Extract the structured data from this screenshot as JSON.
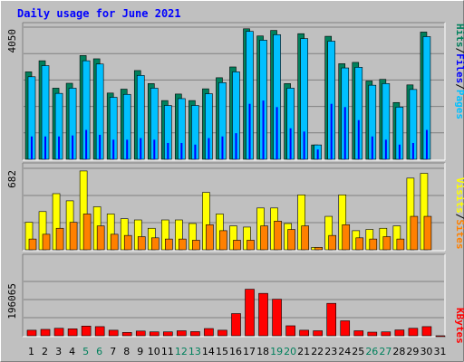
{
  "chart_data": {
    "title": "Daily usage for June 2021",
    "type": "bar",
    "categories": [
      "1",
      "2",
      "3",
      "4",
      "5",
      "6",
      "7",
      "8",
      "9",
      "10",
      "11",
      "12",
      "13",
      "14",
      "15",
      "16",
      "17",
      "18",
      "19",
      "20",
      "21",
      "22",
      "23",
      "24",
      "25",
      "26",
      "27",
      "28",
      "29",
      "30",
      "31"
    ],
    "weekend_days": [
      5,
      6,
      12,
      13,
      19,
      20,
      26,
      27
    ],
    "panels": [
      {
        "name": "hits-files-pages",
        "max_label": "4050",
        "ylim": [
          0,
          4050
        ],
        "right_label": [
          "Pages",
          "/",
          "Files",
          "/",
          "Hits"
        ],
        "series": [
          {
            "name": "Hits",
            "color": "#00805c",
            "values": [
              2680,
              3020,
              2180,
              2330,
              3180,
              3080,
              2030,
              2150,
              2720,
              2320,
              1800,
              2000,
              1800,
              2160,
              2500,
              2830,
              4000,
              3780,
              3950,
              2320,
              3850,
              440,
              3770,
              2930,
              2970,
              2400,
              2450,
              1740,
              2280,
              3900
            ]
          },
          {
            "name": "Files",
            "color": "#00c0ff",
            "values": [
              2530,
              2870,
              2020,
              2180,
              3020,
              2920,
              1900,
              1990,
              2570,
              2180,
              1650,
              1860,
              1650,
              2010,
              2350,
              2680,
              3920,
              3650,
              3820,
              2180,
              3700,
              440,
              3620,
              2800,
              2820,
              2270,
              2320,
              1600,
              2140,
              3760
            ]
          },
          {
            "name": "Pages",
            "color": "#0000ff",
            "values": [
              700,
              700,
              700,
              730,
              900,
              750,
              600,
              600,
              650,
              600,
              500,
              500,
              450,
              650,
              700,
              800,
              1700,
              1800,
              1600,
              950,
              850,
              300,
              1700,
              1600,
              1200,
              700,
              600,
              450,
              500,
              900
            ]
          }
        ]
      },
      {
        "name": "visits-sites",
        "max_label": "682",
        "ylim": [
          0,
          682
        ],
        "right_label": [
          "Sites",
          "/",
          "Visits"
        ],
        "series": [
          {
            "name": "Visits",
            "color": "#ffff00",
            "values": [
              230,
              320,
              470,
              410,
              660,
              360,
              300,
              260,
              250,
              180,
              250,
              250,
              220,
              480,
              300,
              200,
              190,
              350,
              350,
              220,
              460,
              20,
              280,
              460,
              160,
              170,
              180,
              200,
              600,
              640
            ]
          },
          {
            "name": "Sites",
            "color": "#ff8000",
            "values": [
              90,
              130,
              180,
              230,
              300,
              200,
              130,
              120,
              110,
              100,
              90,
              90,
              80,
              210,
              160,
              80,
              80,
              200,
              240,
              170,
              200,
              20,
              120,
              210,
              100,
              90,
              110,
              90,
              280,
              280
            ]
          }
        ]
      },
      {
        "name": "kbytes",
        "max_label": "196065",
        "ylim": [
          0,
          196065
        ],
        "right_label": [
          "KBytes"
        ],
        "series": [
          {
            "name": "KBytes",
            "color": "#ff0000",
            "values": [
              20000,
              23000,
              27000,
              25000,
              35000,
              33000,
              20000,
              12000,
              17000,
              14000,
              14000,
              18000,
              15000,
              26000,
              20000,
              80000,
              168000,
              153000,
              132000,
              36000,
              20000,
              18000,
              117000,
              54000,
              18000,
              13000,
              14000,
              21000,
              27000,
              33000,
              0
            ]
          }
        ]
      }
    ],
    "grid": true,
    "legend": "right-side vertical labels"
  },
  "colors": {
    "background": "#c0c0c0",
    "title_color": "#0000ff",
    "weekday_label": "#000000",
    "weekend_label": "#00805c",
    "bevel_light": "#ffffff",
    "bevel_dark": "#808080",
    "grid_line": "#808080",
    "bar_outline": "#000000"
  }
}
